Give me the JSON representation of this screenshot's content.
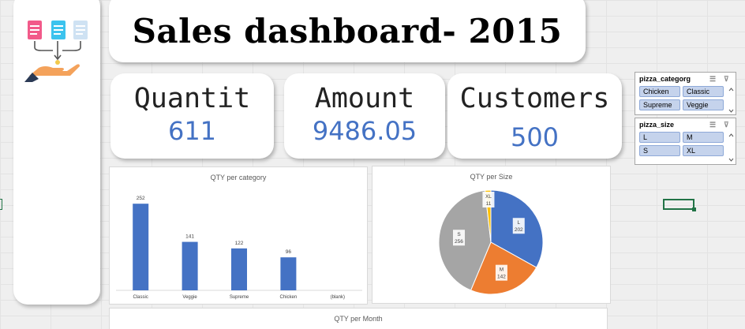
{
  "title": "Sales dashboard- 2015",
  "kpis": [
    {
      "label": "Quantit",
      "value": "611"
    },
    {
      "label": "Amount",
      "value": "9486.05"
    },
    {
      "label": "Customers",
      "value": "500"
    }
  ],
  "slicers": [
    {
      "title": "pizza_categorg",
      "items": [
        "Chicken",
        "Classic",
        "Supreme",
        "Veggie"
      ]
    },
    {
      "title": "pizza_size",
      "items": [
        "L",
        "M",
        "S",
        "XL"
      ]
    }
  ],
  "colors": {
    "accent": "#4472c4",
    "orange": "#ed7d31",
    "gray": "#a5a5a5",
    "yellow": "#ffc000"
  },
  "chart_data": [
    {
      "type": "bar",
      "title": "QTY per category",
      "categories": [
        "Classic",
        "Veggie",
        "Supreme",
        "Chicken",
        "(blank)"
      ],
      "values": [
        252,
        141,
        122,
        96,
        null
      ],
      "value_labels": [
        "252",
        "141",
        "122",
        "96",
        ""
      ],
      "ylim": [
        0,
        280
      ]
    },
    {
      "type": "pie",
      "title": "QTY per Size",
      "labels": [
        "L",
        "M",
        "S",
        "XL"
      ],
      "values": [
        202,
        142,
        256,
        11
      ],
      "value_labels": [
        "202",
        "142",
        "256",
        "11"
      ],
      "colors": [
        "#4472c4",
        "#ed7d31",
        "#a5a5a5",
        "#ffc000"
      ]
    },
    {
      "type": "line",
      "title": "QTY per Month"
    }
  ]
}
